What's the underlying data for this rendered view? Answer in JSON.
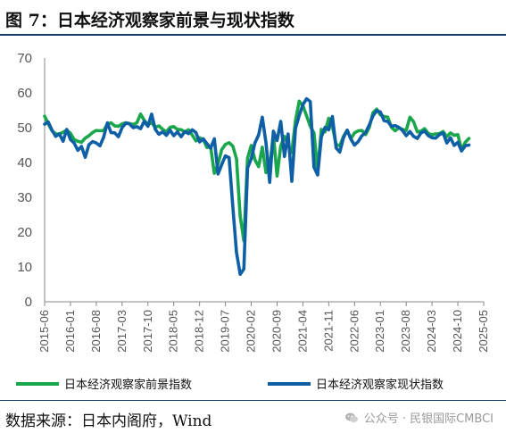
{
  "title": "图 7：日本经济观察家前景与现状指数",
  "source": "数据来源：日本内阁府，Wind",
  "watermark": "公众号 · 民银国际CMBCI",
  "watermark_icon": "wechat-icon",
  "colors": {
    "outlook": "#1aa64a",
    "current": "#0e5fa6",
    "axis": "#888888",
    "text": "#555555",
    "rule": "#1a3a6b"
  },
  "chart_data": {
    "type": "line",
    "title": "",
    "xlabel": "",
    "ylabel": "",
    "ylim": [
      0,
      70
    ],
    "yticks": [
      0,
      10,
      20,
      30,
      40,
      50,
      60,
      70
    ],
    "xlim": [
      "2015-06",
      "2025-05"
    ],
    "xtick_labels": [
      "2015-06",
      "2016-01",
      "2016-08",
      "2017-03",
      "2017-10",
      "2018-05",
      "2018-12",
      "2019-07",
      "2020-02",
      "2020-09",
      "2021-04",
      "2021-11",
      "2022-06",
      "2023-01",
      "2023-08",
      "2024-03",
      "2024-10",
      "2025-05"
    ],
    "legend_position": "bottom",
    "grid": false,
    "series": [
      {
        "name": "日本经济观察家前景指数",
        "color": "#1aa64a",
        "start": "2015-06",
        "values": [
          53.3,
          51.1,
          49.1,
          48.2,
          48.2,
          48.7,
          49.3,
          48.4,
          46.6,
          46.1,
          45.8,
          47.0,
          47.7,
          48.6,
          49.2,
          49.1,
          49.2,
          51.0,
          51.4,
          50.5,
          50.4,
          51.1,
          51.4,
          51.2,
          50.9,
          51.4,
          53.9,
          52.1,
          50.9,
          51.4,
          50.1,
          50.5,
          49.5,
          48.8,
          50.1,
          50.3,
          49.5,
          49.4,
          48.8,
          49.4,
          47.9,
          46.2,
          47.1,
          46.6,
          44.3,
          44.5,
          36.9,
          39.6,
          43.7,
          45.2,
          45.7,
          44.7,
          41.1,
          24.6,
          17.5,
          41.2,
          44.9,
          40.8,
          38.8,
          44.4,
          37.1,
          38.8,
          48.1,
          36.1,
          44.8,
          47.5,
          45.0,
          42.9,
          52.1,
          57.6,
          56.3,
          53.4,
          50.4,
          48.5,
          37.6,
          49.5,
          48.8,
          52.7,
          50.3,
          45.2,
          44.8,
          47.5,
          49.3,
          46.8,
          48.5,
          49.1,
          49.2,
          48.0,
          50.1,
          54.3,
          55.3,
          53.7,
          53.2,
          53.0,
          50.1,
          49.1,
          50.0,
          49.5,
          49.2,
          53.0,
          51.7,
          48.8,
          49.0,
          49.7,
          48.3,
          48.0,
          48.2,
          48.3,
          48.9,
          47.4,
          48.5,
          47.8,
          48.0,
          43.7,
          45.8,
          46.9
        ]
      },
      {
        "name": "日本经济观察家现状指数",
        "color": "#0e5fa6",
        "start": "2015-06",
        "values": [
          51.0,
          51.6,
          49.3,
          47.5,
          48.2,
          46.1,
          49.5,
          46.6,
          45.6,
          43.5,
          44.6,
          41.5,
          45.1,
          46.0,
          45.6,
          44.8,
          47.3,
          51.4,
          48.6,
          48.5,
          47.4,
          50.0,
          51.3,
          51.1,
          50.0,
          50.3,
          49.7,
          51.8,
          50.4,
          53.9,
          49.5,
          48.1,
          48.8,
          47.8,
          49.3,
          47.7,
          48.8,
          47.4,
          48.9,
          48.3,
          49.4,
          48.6,
          45.9,
          46.8,
          45.4,
          44.1,
          46.8,
          36.7,
          39.4,
          41.9,
          41.4,
          27.4,
          14.2,
          7.9,
          9.4,
          38.4,
          41.1,
          45.6,
          47.9,
          53.0,
          45.6,
          34.3,
          49.0,
          46.3,
          51.8,
          41.7,
          48.2,
          34.6,
          49.8,
          53.5,
          56.6,
          58.3,
          57.5,
          38.7,
          36.4,
          47.3,
          50.1,
          49.4,
          53.2,
          44.2,
          43.0,
          47.1,
          49.3,
          46.7,
          45.0,
          46.0,
          47.7,
          48.6,
          50.8,
          53.4,
          54.9,
          54.5,
          52.0,
          51.8,
          50.4,
          50.6,
          50.1,
          49.2,
          47.7,
          48.9,
          47.5,
          46.9,
          48.5,
          49.0,
          47.7,
          47.1,
          47.0,
          48.0,
          48.5,
          45.6,
          47.1,
          44.9,
          45.8,
          43.3,
          44.8,
          45.0
        ]
      }
    ]
  }
}
